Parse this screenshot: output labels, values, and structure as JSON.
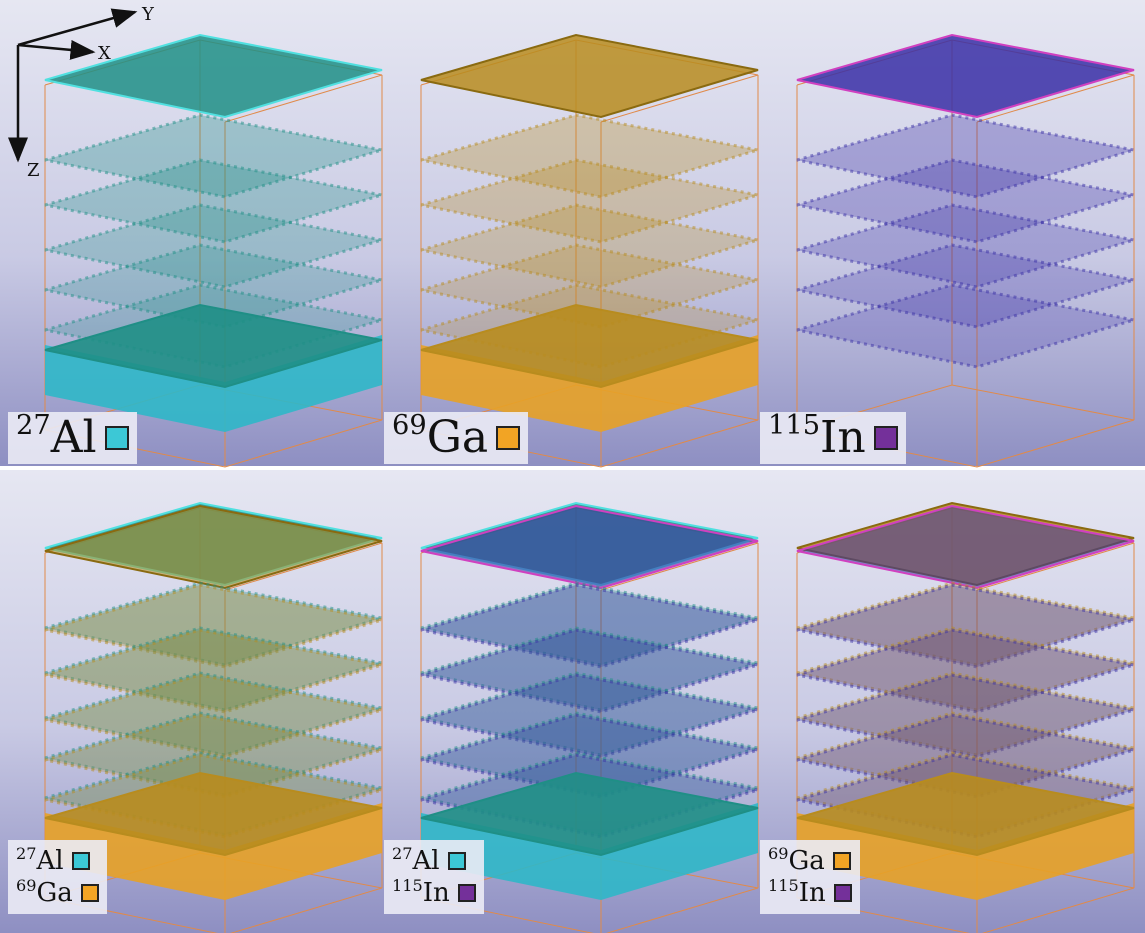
{
  "axes": {
    "y": "Y",
    "x": "X",
    "z": "Z"
  },
  "panels": [
    {
      "labels": [
        {
          "mass": "27",
          "element": "Al",
          "color": "#3cc8d6"
        }
      ]
    },
    {
      "labels": [
        {
          "mass": "69",
          "element": "Ga",
          "color": "#f2a424"
        }
      ]
    },
    {
      "labels": [
        {
          "mass": "115",
          "element": "In",
          "color": "#74309a"
        }
      ]
    },
    {
      "labels": [
        {
          "mass": "27",
          "element": "Al",
          "color": "#3cc8d6"
        },
        {
          "mass": "69",
          "element": "Ga",
          "color": "#f2a424"
        }
      ]
    },
    {
      "labels": [
        {
          "mass": "27",
          "element": "Al",
          "color": "#3cc8d6"
        },
        {
          "mass": "115",
          "element": "In",
          "color": "#74309a"
        }
      ]
    },
    {
      "labels": [
        {
          "mass": "69",
          "element": "Ga",
          "color": "#f2a424"
        },
        {
          "mass": "115",
          "element": "In",
          "color": "#74309a"
        }
      ]
    }
  ]
}
